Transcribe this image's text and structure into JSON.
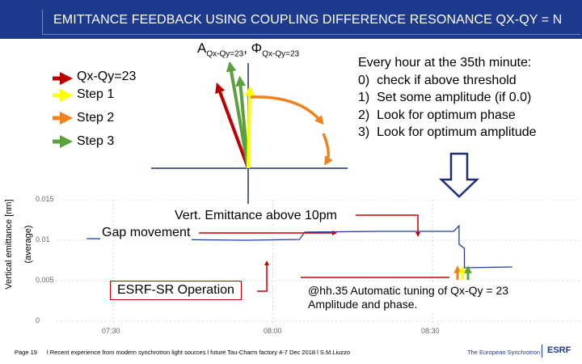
{
  "title": "EMITTANCE FEEDBACK USING COUPLING DIFFERENCE RESONANCE QX-QY = N",
  "phasor": {
    "amp_symbol": "A",
    "amp_sub": "Qx-Qy=23",
    "sep": ",",
    "phase_symbol": "Φ",
    "phase_sub": "Qx-Qy=23"
  },
  "legend": [
    {
      "label": "Qx-Qy=23",
      "color": "#c00000"
    },
    {
      "label": "Step 1",
      "color": "#ffff00"
    },
    {
      "label": "Step 2",
      "color": "#f0821e"
    },
    {
      "label": "Step 3",
      "color": "#5aa03c"
    }
  ],
  "procedure": {
    "header": "Every hour at the 35th minute:",
    "steps": [
      {
        "num": "0)",
        "text": "check if above threshold"
      },
      {
        "num": "1)",
        "text": "Set some amplitude (if 0.0)"
      },
      {
        "num": "2)",
        "text": "Look for optimum phase"
      },
      {
        "num": "3)",
        "text": "Look for optimum amplitude"
      }
    ]
  },
  "plot": {
    "ylabel_line1": "Vertical emittance [nm]",
    "ylabel_line2": "(average)",
    "yticks": [
      "0.015",
      "0.01",
      "0.005",
      "0"
    ],
    "xticks": [
      "07:30",
      "08:00",
      "08:30"
    ]
  },
  "chart_data": {
    "type": "line",
    "xlabel": "",
    "ylabel": "Vertical emittance [nm] (average)",
    "ylim": [
      0,
      0.015
    ],
    "x_ticks": [
      "07:30",
      "08:00",
      "08:30"
    ],
    "series": [
      {
        "values": [
          {
            "x": "07:25",
            "y": 0.0102
          },
          {
            "x": "07:40",
            "y": 0.0101
          },
          {
            "x": "07:55",
            "y": 0.01
          },
          {
            "x": "08:05",
            "y": 0.0101
          },
          {
            "x": "08:06",
            "y": 0.011
          },
          {
            "x": "08:20",
            "y": 0.0111
          },
          {
            "x": "08:34",
            "y": 0.0111
          },
          {
            "x": "08:35",
            "y": 0.0118
          },
          {
            "x": "08:35",
            "y": 0.0095
          },
          {
            "x": "08:36",
            "y": 0.009
          },
          {
            "x": "08:36",
            "y": 0.0066
          },
          {
            "x": "08:45",
            "y": 0.0067
          }
        ]
      }
    ]
  },
  "annotations": {
    "vert_emittance": "Vert. Emittance above 10pm",
    "gap_movement": "Gap movement",
    "esrf_operation": "ESRF-SR Operation",
    "auto_tuning_1": "@hh.35 Automatic tuning of Qx-Qy = 23",
    "auto_tuning_2": "Amplitude and phase."
  },
  "footer": {
    "page": "Page 19",
    "citation": "l Recent experience from modern synchrotron light sources l future Tau-Charm factory 4-7 Dec 2018 l S.M.Liuzzo",
    "brand": "The European Synchrotron",
    "logo": "ESRF"
  }
}
